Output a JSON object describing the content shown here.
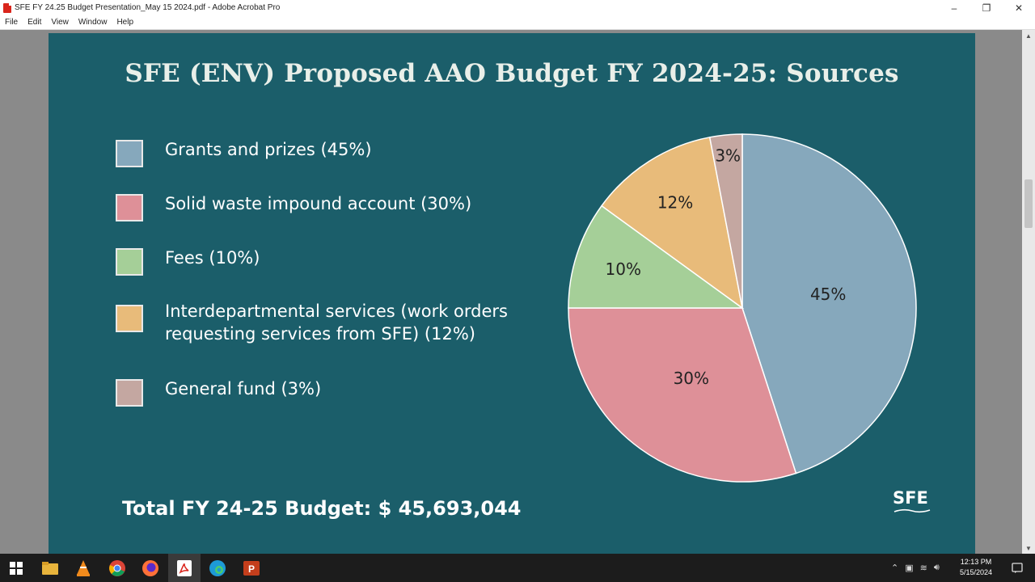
{
  "window": {
    "title": "SFE FY 24.25 Budget Presentation_May 15 2024.pdf - Adobe Acrobat Pro",
    "controls": {
      "minimize": "–",
      "restore": "❐",
      "close": "✕"
    }
  },
  "menu": {
    "items": [
      "File",
      "Edit",
      "View",
      "Window",
      "Help"
    ]
  },
  "slide": {
    "title": "SFE (ENV) Proposed AAO Budget FY 2024-25: Sources",
    "legend": [
      {
        "label": "Grants and prizes (45%)",
        "color": "#86a8bc"
      },
      {
        "label": "Solid waste impound account (30%)",
        "color": "#de9098"
      },
      {
        "label": "Fees (10%)",
        "color": "#a5cf98"
      },
      {
        "label_line1": "Interdepartmental services (work orders",
        "label_line2": "requesting services from SFE) (12%)",
        "color": "#e8bb7a"
      },
      {
        "label": "General fund (3%)",
        "color": "#c4a7a1"
      }
    ],
    "total": "Total FY 24-25 Budget: $ 45,693,044",
    "logo": "SFE"
  },
  "chart_data": {
    "type": "pie",
    "title": "",
    "start": "top, clockwise",
    "slices": [
      {
        "name": "Grants and prizes",
        "value": 45,
        "label": "45%",
        "color": "#86a8bc"
      },
      {
        "name": "Solid waste impound account",
        "value": 30,
        "label": "30%",
        "color": "#de9098"
      },
      {
        "name": "Fees",
        "value": 10,
        "label": "10%",
        "color": "#a5cf98"
      },
      {
        "name": "Interdepartmental services",
        "value": 12,
        "label": "12%",
        "color": "#e8bb7a"
      },
      {
        "name": "General fund",
        "value": 3,
        "label": "3%",
        "color": "#c4a7a1"
      }
    ]
  },
  "taskbar": {
    "icons": [
      "windows-start-icon",
      "file-explorer-icon",
      "vlc-icon",
      "chrome-icon",
      "firefox-icon",
      "acrobat-icon",
      "edge-icon",
      "powerpoint-icon"
    ],
    "time": "12:13 PM",
    "date": "5/15/2024"
  }
}
